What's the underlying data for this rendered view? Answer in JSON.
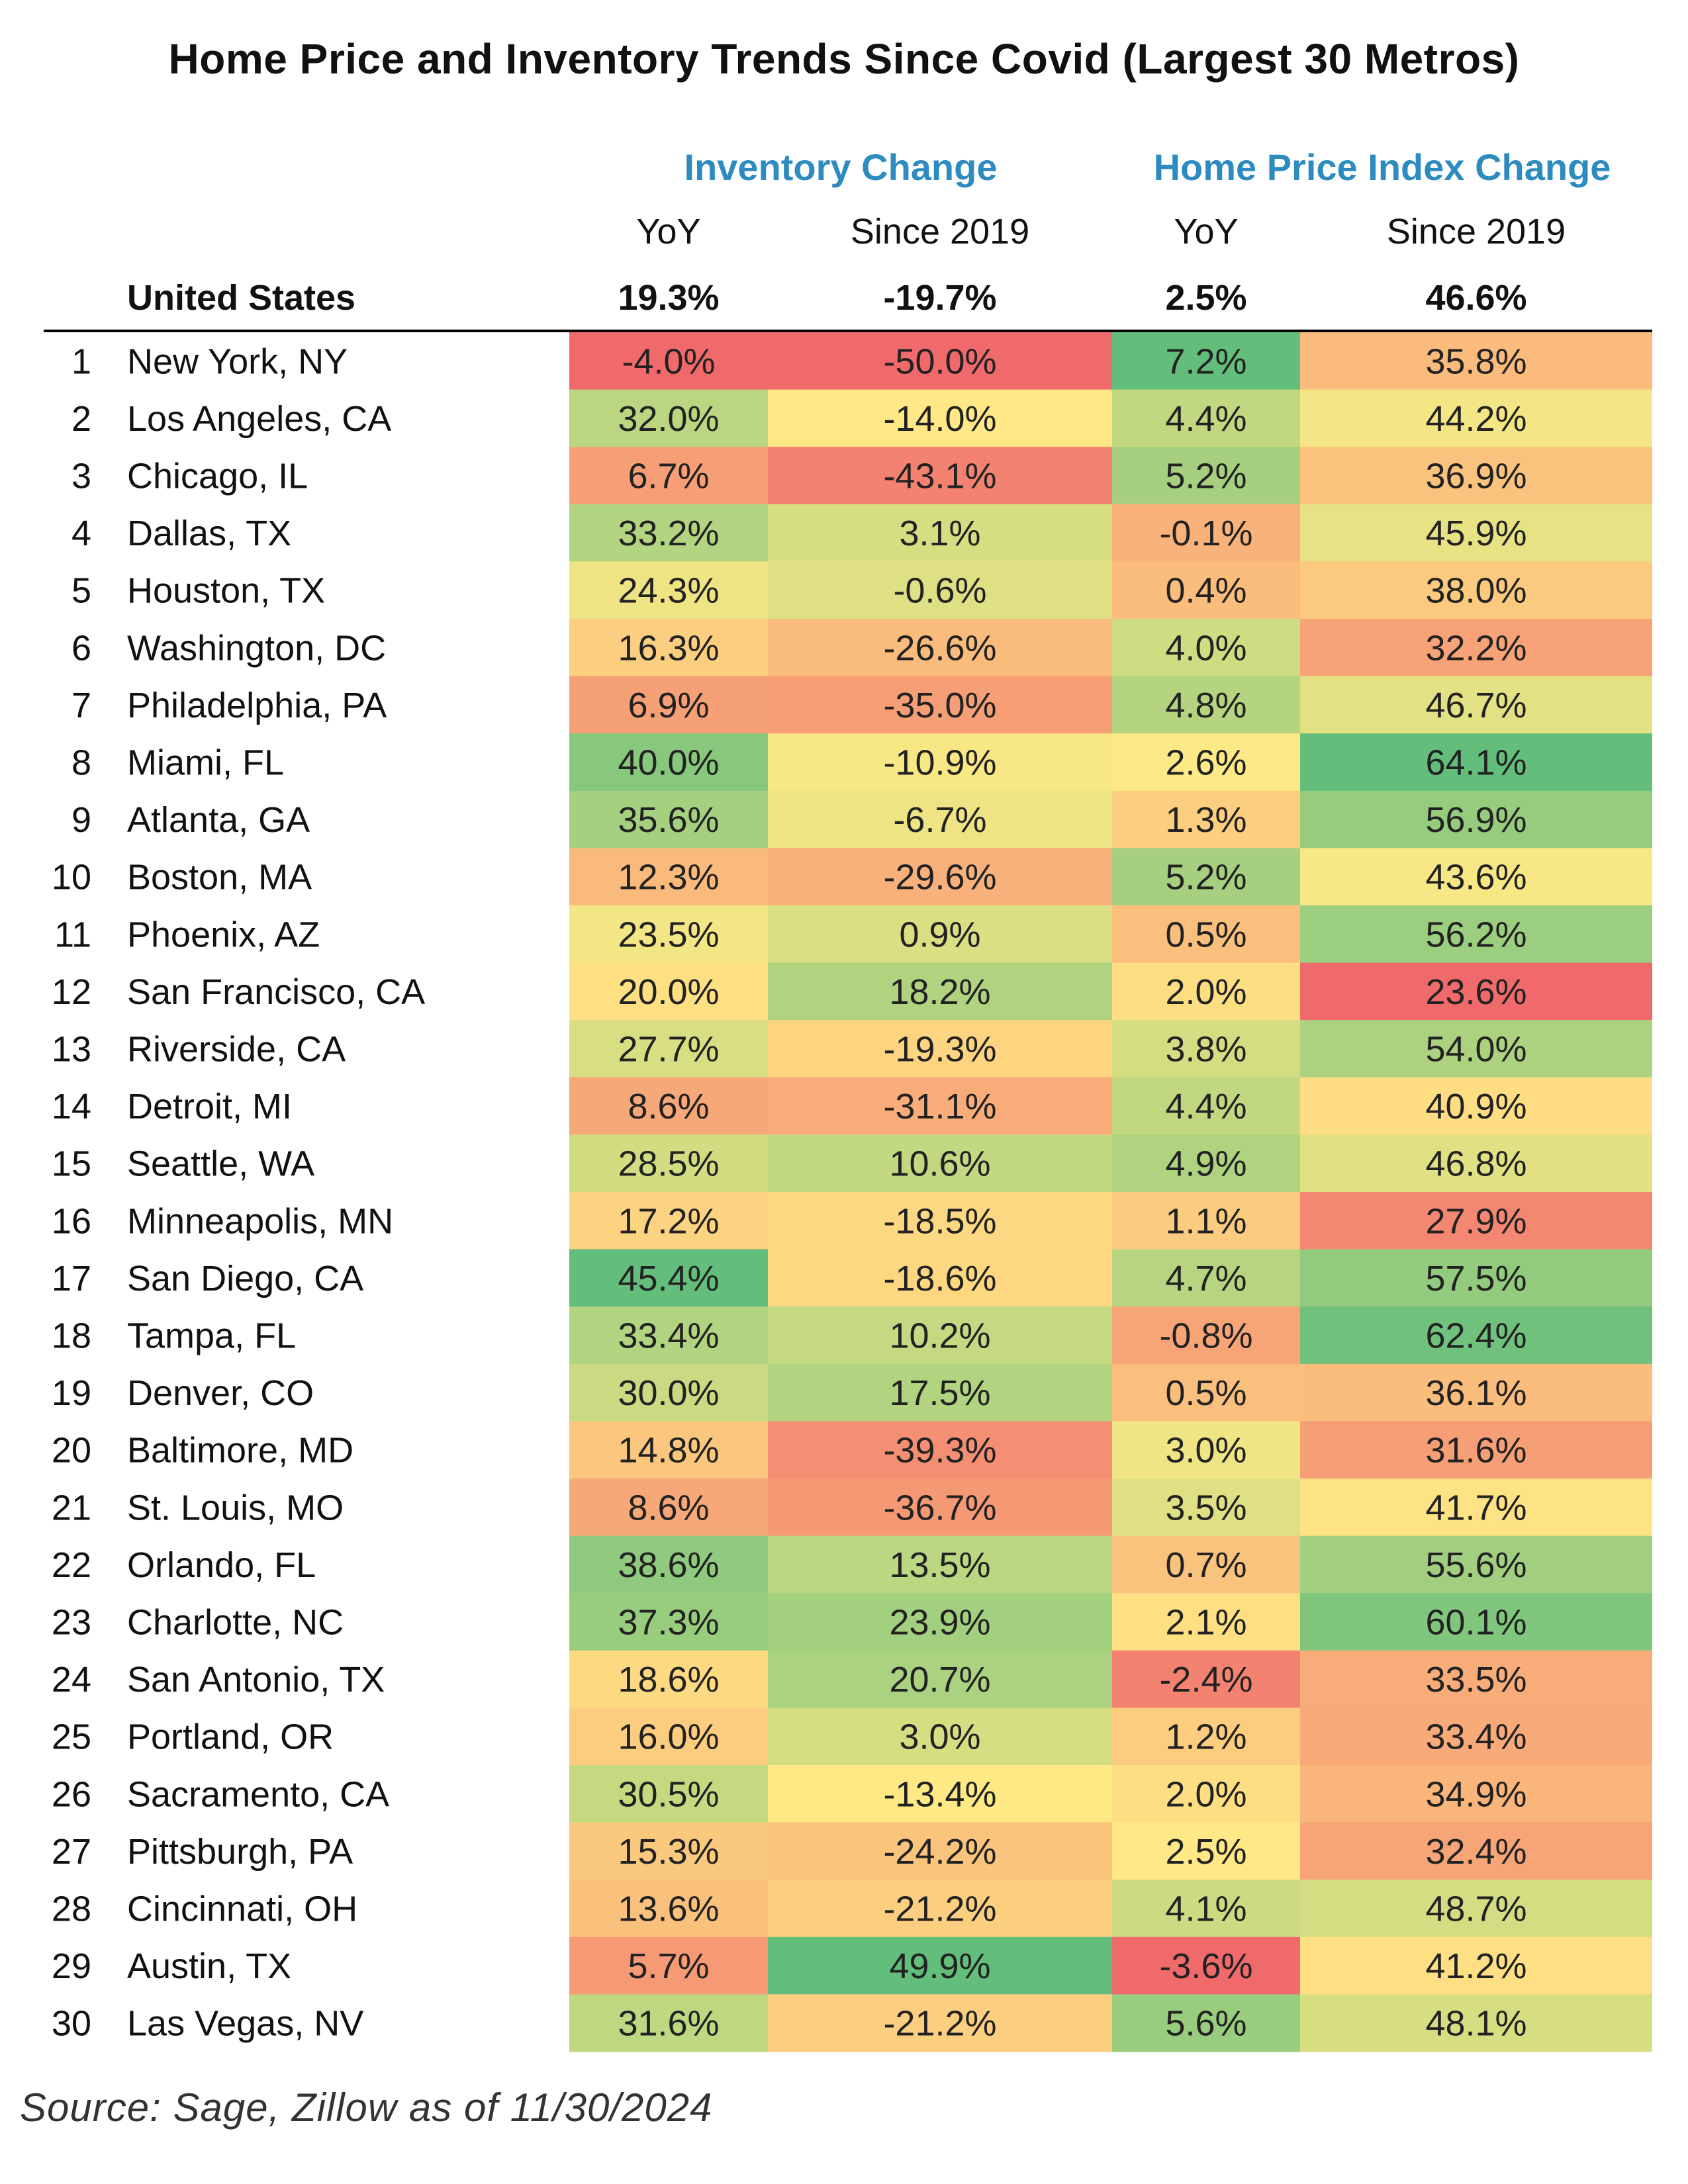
{
  "chart_data": {
    "type": "heatmap",
    "title": "Home Price and Inventory Trends Since Covid (Largest 30 Metros)",
    "group_headers": [
      "Inventory Change",
      "Home Price Index Change"
    ],
    "columns": [
      "YoY",
      "Since 2019",
      "YoY",
      "Since 2019"
    ],
    "summary": {
      "label": "United States",
      "values": [
        "19.3%",
        "-19.7%",
        "2.5%",
        "46.6%"
      ]
    },
    "rows": [
      {
        "rank": "1",
        "metro": "New York, NY",
        "values": [
          "-4.0%",
          "-50.0%",
          "7.2%",
          "35.8%"
        ]
      },
      {
        "rank": "2",
        "metro": "Los Angeles, CA",
        "values": [
          "32.0%",
          "-14.0%",
          "4.4%",
          "44.2%"
        ]
      },
      {
        "rank": "3",
        "metro": "Chicago, IL",
        "values": [
          "6.7%",
          "-43.1%",
          "5.2%",
          "36.9%"
        ]
      },
      {
        "rank": "4",
        "metro": "Dallas, TX",
        "values": [
          "33.2%",
          "3.1%",
          "-0.1%",
          "45.9%"
        ]
      },
      {
        "rank": "5",
        "metro": "Houston, TX",
        "values": [
          "24.3%",
          "-0.6%",
          "0.4%",
          "38.0%"
        ]
      },
      {
        "rank": "6",
        "metro": "Washington, DC",
        "values": [
          "16.3%",
          "-26.6%",
          "4.0%",
          "32.2%"
        ]
      },
      {
        "rank": "7",
        "metro": "Philadelphia, PA",
        "values": [
          "6.9%",
          "-35.0%",
          "4.8%",
          "46.7%"
        ]
      },
      {
        "rank": "8",
        "metro": "Miami, FL",
        "values": [
          "40.0%",
          "-10.9%",
          "2.6%",
          "64.1%"
        ]
      },
      {
        "rank": "9",
        "metro": "Atlanta, GA",
        "values": [
          "35.6%",
          "-6.7%",
          "1.3%",
          "56.9%"
        ]
      },
      {
        "rank": "10",
        "metro": "Boston, MA",
        "values": [
          "12.3%",
          "-29.6%",
          "5.2%",
          "43.6%"
        ]
      },
      {
        "rank": "11",
        "metro": "Phoenix, AZ",
        "values": [
          "23.5%",
          "0.9%",
          "0.5%",
          "56.2%"
        ]
      },
      {
        "rank": "12",
        "metro": "San Francisco, CA",
        "values": [
          "20.0%",
          "18.2%",
          "2.0%",
          "23.6%"
        ]
      },
      {
        "rank": "13",
        "metro": "Riverside, CA",
        "values": [
          "27.7%",
          "-19.3%",
          "3.8%",
          "54.0%"
        ]
      },
      {
        "rank": "14",
        "metro": "Detroit, MI",
        "values": [
          "8.6%",
          "-31.1%",
          "4.4%",
          "40.9%"
        ]
      },
      {
        "rank": "15",
        "metro": "Seattle, WA",
        "values": [
          "28.5%",
          "10.6%",
          "4.9%",
          "46.8%"
        ]
      },
      {
        "rank": "16",
        "metro": "Minneapolis, MN",
        "values": [
          "17.2%",
          "-18.5%",
          "1.1%",
          "27.9%"
        ]
      },
      {
        "rank": "17",
        "metro": "San Diego, CA",
        "values": [
          "45.4%",
          "-18.6%",
          "4.7%",
          "57.5%"
        ]
      },
      {
        "rank": "18",
        "metro": "Tampa, FL",
        "values": [
          "33.4%",
          "10.2%",
          "-0.8%",
          "62.4%"
        ]
      },
      {
        "rank": "19",
        "metro": "Denver, CO",
        "values": [
          "30.0%",
          "17.5%",
          "0.5%",
          "36.1%"
        ]
      },
      {
        "rank": "20",
        "metro": "Baltimore, MD",
        "values": [
          "14.8%",
          "-39.3%",
          "3.0%",
          "31.6%"
        ]
      },
      {
        "rank": "21",
        "metro": "St. Louis, MO",
        "values": [
          "8.6%",
          "-36.7%",
          "3.5%",
          "41.7%"
        ]
      },
      {
        "rank": "22",
        "metro": "Orlando, FL",
        "values": [
          "38.6%",
          "13.5%",
          "0.7%",
          "55.6%"
        ]
      },
      {
        "rank": "23",
        "metro": "Charlotte, NC",
        "values": [
          "37.3%",
          "23.9%",
          "2.1%",
          "60.1%"
        ]
      },
      {
        "rank": "24",
        "metro": "San Antonio, TX",
        "values": [
          "18.6%",
          "20.7%",
          "-2.4%",
          "33.5%"
        ]
      },
      {
        "rank": "25",
        "metro": "Portland, OR",
        "values": [
          "16.0%",
          "3.0%",
          "1.2%",
          "33.4%"
        ]
      },
      {
        "rank": "26",
        "metro": "Sacramento, CA",
        "values": [
          "30.5%",
          "-13.4%",
          "2.0%",
          "34.9%"
        ]
      },
      {
        "rank": "27",
        "metro": "Pittsburgh, PA",
        "values": [
          "15.3%",
          "-24.2%",
          "2.5%",
          "32.4%"
        ]
      },
      {
        "rank": "28",
        "metro": "Cincinnati, OH",
        "values": [
          "13.6%",
          "-21.2%",
          "4.1%",
          "48.7%"
        ]
      },
      {
        "rank": "29",
        "metro": "Austin, TX",
        "values": [
          "5.7%",
          "49.9%",
          "-3.6%",
          "41.2%"
        ]
      },
      {
        "rank": "30",
        "metro": "Las Vegas, NV",
        "values": [
          "31.6%",
          "-21.2%",
          "5.6%",
          "48.1%"
        ]
      }
    ],
    "color_scale": {
      "low": "#f06a6b",
      "mid": "#ffe985",
      "high": "#63be7b"
    },
    "header_color": "#2e8bc0"
  },
  "source": "Source: Sage, Zillow as of 11/30/2024"
}
